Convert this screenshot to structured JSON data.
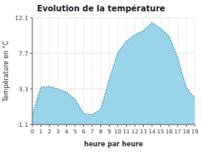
{
  "chart_data": {
    "type": "area",
    "title": "Evolution de la température",
    "x_label": "heure par heure",
    "y_label": "Température en °C",
    "x": [
      0,
      1,
      2,
      3,
      4,
      5,
      6,
      7,
      8,
      9,
      10,
      11,
      12,
      13,
      14,
      15,
      16,
      17,
      18,
      19
    ],
    "values": [
      0.1,
      3.5,
      3.6,
      3.3,
      2.9,
      2.0,
      0.3,
      0.1,
      0.8,
      4.5,
      7.8,
      9.2,
      10.0,
      10.5,
      11.5,
      10.8,
      9.8,
      7.2,
      3.5,
      2.2
    ],
    "color": "#99d4e8",
    "line_style": "dotted",
    "xlim": [
      0,
      19
    ],
    "xticks": [
      0,
      1,
      2,
      3,
      4,
      5,
      6,
      7,
      8,
      9,
      10,
      11,
      12,
      13,
      14,
      15,
      16,
      17,
      18,
      19
    ],
    "ylim": [
      -1.1,
      12.1
    ],
    "yticks": [
      -1.1,
      3.3,
      7.7,
      12.1
    ],
    "grid": true
  }
}
